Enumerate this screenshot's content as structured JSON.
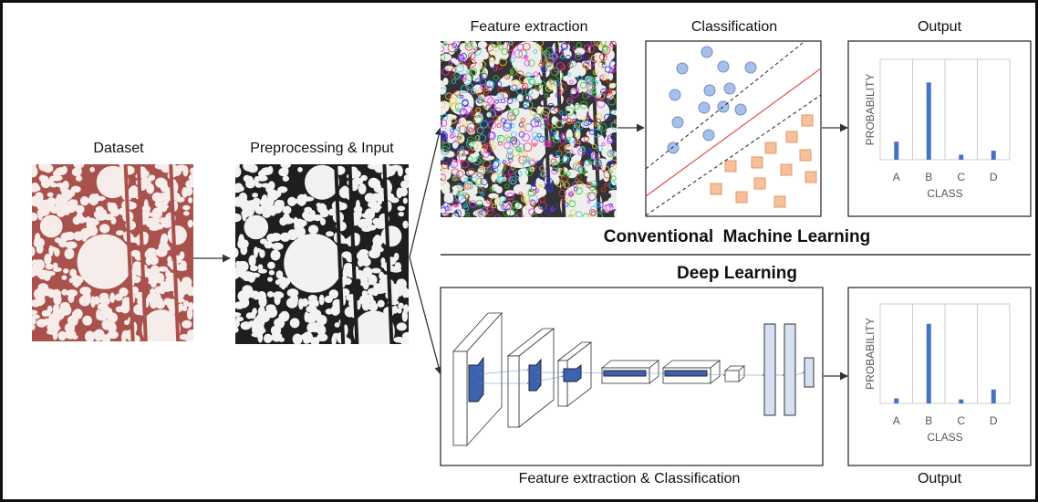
{
  "dataset": {
    "title": "Dataset"
  },
  "preprocessing": {
    "title": "Preprocessing & Input"
  },
  "conventional": {
    "feature_title": "Feature extraction",
    "classification_title": "Classification",
    "output_title": "Output",
    "label": "Conventional  Machine Learning",
    "output_chart": {
      "type": "bar",
      "y_label": "PROBABILITY",
      "x_label": "CLASS",
      "categories": [
        "A",
        "B",
        "C",
        "D"
      ],
      "values": [
        0.18,
        0.77,
        0.05,
        0.09
      ],
      "color": "#4472c4",
      "ylim": [
        0,
        1
      ]
    }
  },
  "deep": {
    "label": "Deep Learning",
    "footer": "Feature extraction & Classification",
    "output_title": "Output",
    "output_chart": {
      "type": "bar",
      "y_label": "PROBABILITY",
      "x_label": "CLASS",
      "categories": [
        "A",
        "B",
        "C",
        "D"
      ],
      "values": [
        0.05,
        0.8,
        0.04,
        0.14
      ],
      "color": "#4472c4",
      "ylim": [
        0,
        1
      ]
    }
  }
}
